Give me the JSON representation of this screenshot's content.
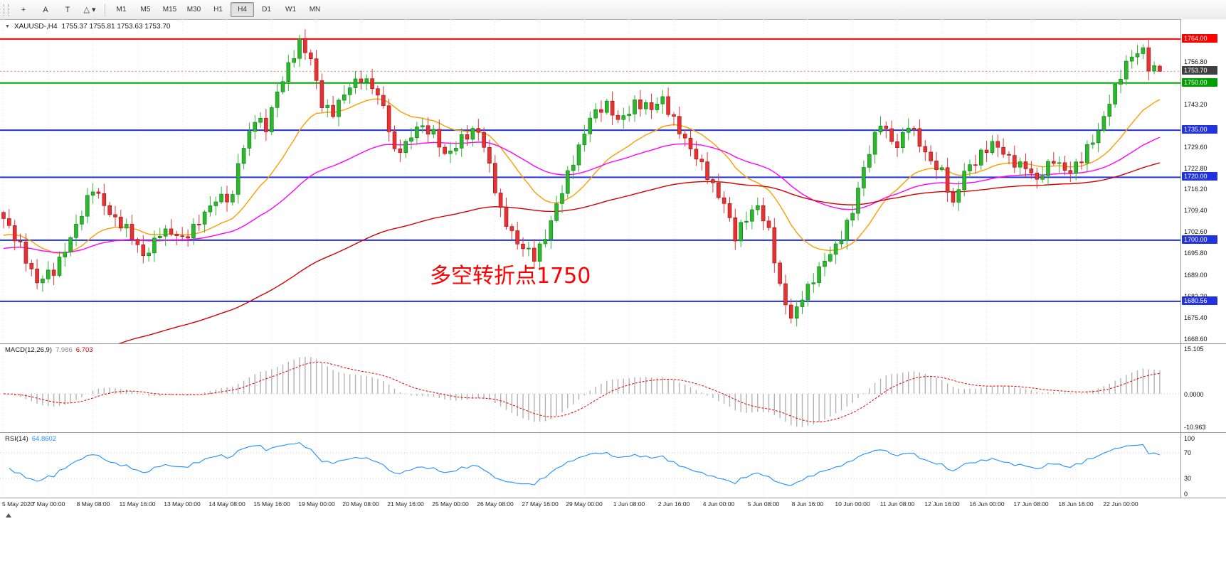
{
  "toolbar": {
    "tools": [
      {
        "name": "crosshair",
        "glyph": "+"
      },
      {
        "name": "text-label",
        "glyph": "A"
      },
      {
        "name": "price-label",
        "glyph": "T"
      },
      {
        "name": "shapes",
        "glyph": "△",
        "caret": "▾"
      }
    ],
    "timeframes": [
      "M1",
      "M5",
      "M15",
      "M30",
      "H1",
      "H4",
      "D1",
      "W1",
      "MN"
    ],
    "active_timeframe": "H4"
  },
  "chart": {
    "symbol_title": "XAUUSD-,H4",
    "ohlc_text": "1755.37 1755.81 1753.63 1753.70",
    "annotation": "多空转折点1750"
  },
  "price_axis": {
    "ticks": [
      "1756.80",
      "1743.20",
      "1729.60",
      "1722.80",
      "1716.20",
      "1709.40",
      "1702.60",
      "1695.80",
      "1689.00",
      "1682.20",
      "1675.40",
      "1668.60"
    ],
    "badges": [
      {
        "label": "1764.00",
        "price": 1764.0,
        "color": "#ff0000"
      },
      {
        "label": "1753.70",
        "price": 1753.7,
        "color": "#404040",
        "kind": "current-price"
      },
      {
        "label": "1750.00",
        "price": 1750.0,
        "color": "#00a000"
      },
      {
        "label": "1735.00",
        "price": 1735.0,
        "color": "#2033dd"
      },
      {
        "label": "1720.00",
        "price": 1720.0,
        "color": "#2033dd"
      },
      {
        "label": "1700.00",
        "price": 1700.0,
        "color": "#2033dd"
      },
      {
        "label": "1680.56",
        "price": 1680.56,
        "color": "#2033dd"
      }
    ]
  },
  "macd_panel": {
    "name": "MACD(12,26,9)",
    "value_main": "7.986",
    "value_signal": "6.703",
    "scale_top": "15.105",
    "scale_zero": "0.0000",
    "scale_bottom": "-10.963"
  },
  "rsi_panel": {
    "name": "RSI(14)",
    "value": "64.8602",
    "levels": [
      "100",
      "70",
      "30",
      "0"
    ]
  },
  "chart_data": [
    {
      "type": "candlestick",
      "symbol": "XAUUSD-",
      "timeframe": "H4",
      "current_ohlc": {
        "open": 1755.37,
        "high": 1755.81,
        "low": 1753.63,
        "close": 1753.7
      },
      "candle_count": 208,
      "close_path_waypoints": [
        [
          0,
          1706
        ],
        [
          3,
          1699
        ],
        [
          6,
          1686
        ],
        [
          9,
          1690
        ],
        [
          11,
          1698
        ],
        [
          14,
          1708
        ],
        [
          16,
          1716
        ],
        [
          18,
          1712
        ],
        [
          20,
          1707
        ],
        [
          22,
          1703
        ],
        [
          25,
          1695
        ],
        [
          28,
          1703
        ],
        [
          32,
          1700
        ],
        [
          35,
          1707
        ],
        [
          38,
          1712
        ],
        [
          41,
          1714
        ],
        [
          42,
          1726
        ],
        [
          44,
          1734
        ],
        [
          45,
          1738
        ],
        [
          47,
          1735
        ],
        [
          49,
          1748
        ],
        [
          51,
          1756
        ],
        [
          53,
          1762
        ],
        [
          55,
          1757
        ],
        [
          57,
          1744
        ],
        [
          59,
          1741
        ],
        [
          62,
          1748
        ],
        [
          64,
          1752
        ],
        [
          66,
          1750
        ],
        [
          68,
          1742
        ],
        [
          70,
          1727
        ],
        [
          72,
          1731
        ],
        [
          74,
          1737
        ],
        [
          77,
          1733
        ],
        [
          79,
          1727
        ],
        [
          82,
          1733
        ],
        [
          85,
          1734
        ],
        [
          87,
          1724
        ],
        [
          89,
          1710
        ],
        [
          92,
          1698
        ],
        [
          95,
          1695
        ],
        [
          97,
          1702
        ],
        [
          100,
          1715
        ],
        [
          103,
          1730
        ],
        [
          105,
          1740
        ],
        [
          108,
          1742
        ],
        [
          110,
          1738
        ],
        [
          113,
          1744
        ],
        [
          116,
          1741
        ],
        [
          118,
          1745
        ],
        [
          120,
          1739
        ],
        [
          123,
          1728
        ],
        [
          126,
          1721
        ],
        [
          129,
          1712
        ],
        [
          131,
          1700
        ],
        [
          133,
          1707
        ],
        [
          135,
          1712
        ],
        [
          137,
          1703
        ],
        [
          139,
          1684
        ],
        [
          141,
          1675
        ],
        [
          143,
          1683
        ],
        [
          146,
          1690
        ],
        [
          149,
          1698
        ],
        [
          152,
          1710
        ],
        [
          154,
          1722
        ],
        [
          157,
          1738
        ],
        [
          160,
          1730
        ],
        [
          162,
          1736
        ],
        [
          165,
          1728
        ],
        [
          168,
          1722
        ],
        [
          170,
          1710
        ],
        [
          172,
          1722
        ],
        [
          175,
          1728
        ],
        [
          177,
          1730
        ],
        [
          180,
          1726
        ],
        [
          183,
          1724
        ],
        [
          185,
          1718
        ],
        [
          188,
          1726
        ],
        [
          191,
          1722
        ],
        [
          193,
          1725
        ],
        [
          196,
          1735
        ],
        [
          198,
          1745
        ],
        [
          200,
          1752
        ],
        [
          202,
          1758
        ],
        [
          204,
          1761
        ],
        [
          205,
          1756
        ],
        [
          207,
          1753.7
        ]
      ],
      "colors": {
        "up": "#2db72d",
        "up_border": "#0d7a14",
        "down": "#e63232",
        "down_border": "#9c1010"
      },
      "moving_averages": [
        {
          "type": "EMA",
          "period": 20,
          "seed": 1701,
          "color": "#ff9c00"
        },
        {
          "type": "EMA",
          "period": 55,
          "seed": 1697,
          "color": "#ff00ff"
        },
        {
          "type": "EMA",
          "period": 120,
          "seed": 1652,
          "color": "#d40000"
        }
      ],
      "horizontal_levels": [
        {
          "price": 1764.0,
          "color": "#ff0000"
        },
        {
          "price": 1750.0,
          "color": "#00a000"
        },
        {
          "price": 1735.0,
          "color": "#2033dd"
        },
        {
          "price": 1720.0,
          "color": "#2033dd"
        },
        {
          "price": 1700.0,
          "color": "#2033dd"
        },
        {
          "price": 1680.56,
          "color": "#2033dd"
        }
      ],
      "annotation": {
        "text": "多空转折点1750",
        "color": "#ff0000"
      },
      "y_axis_ticks": [
        1756.8,
        1743.2,
        1729.6,
        1722.8,
        1716.2,
        1709.4,
        1702.6,
        1695.8,
        1689.0,
        1682.2,
        1675.4,
        1668.6
      ],
      "x_axis_labels": [
        "5 May 2020",
        "7 May 00:00",
        "8 May 08:00",
        "11 May 16:00",
        "13 May 00:00",
        "14 May 08:00",
        "15 May 16:00",
        "19 May 00:00",
        "20 May 08:00",
        "21 May 16:00",
        "25 May 00:00",
        "26 May 08:00",
        "27 May 16:00",
        "29 May 00:00",
        "1 Jun 08:00",
        "2 Jun 16:00",
        "4 Jun 00:00",
        "5 Jun 08:00",
        "8 Jun 16:00",
        "10 Jun 00:00",
        "11 Jun 08:00",
        "12 Jun 16:00",
        "16 Jun 00:00",
        "17 Jun 08:00",
        "18 Jun 16:00",
        "22 Jun 00:00"
      ]
    },
    {
      "type": "bar",
      "name": "MACD(12,26,9)",
      "current_values": [
        7.986,
        6.703
      ],
      "ylim": [
        -10.963,
        15.105
      ]
    },
    {
      "type": "line",
      "name": "RSI(14)",
      "current_value": 64.8602,
      "levels": [
        70,
        30
      ],
      "ylim": [
        0,
        100
      ]
    }
  ]
}
